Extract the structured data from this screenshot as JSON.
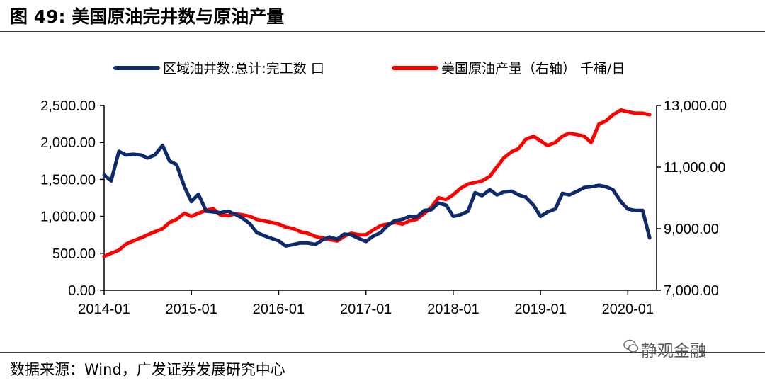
{
  "figure": {
    "title": "图 49:  美国原油完井数与原油产量",
    "source": "数据来源：Wind，广发证券发展研究中心",
    "watermark": "静观金融"
  },
  "colors": {
    "series1": "#0d2a6b",
    "series2": "#ff0000",
    "axis": "#000000",
    "rule": "#3a3a3a"
  },
  "chart_data": {
    "type": "line",
    "title": "",
    "grid": false,
    "legend_position": "top",
    "x_ticks": [
      "2014-01",
      "2015-01",
      "2016-01",
      "2017-01",
      "2018-01",
      "2019-01",
      "2020-01"
    ],
    "y_left": {
      "range": [
        0,
        2500
      ],
      "ticks": [
        "2,500.00",
        "2,000.00",
        "1,500.00",
        "1,000.00",
        "500.00",
        "0.00"
      ],
      "tick_values": [
        2500,
        2000,
        1500,
        1000,
        500,
        0
      ]
    },
    "y_right": {
      "range": [
        7000,
        13000
      ],
      "ticks": [
        "13,000.00",
        "11,000.00",
        "9,000.00",
        "7,000.00"
      ],
      "tick_values": [
        13000,
        11000,
        9000,
        7000
      ]
    },
    "series": [
      {
        "name": "区域油井数:总计:完工数 口",
        "axis": "left",
        "color": "#0d2a6b",
        "x": [
          2014.0,
          2014.08,
          2014.17,
          2014.25,
          2014.33,
          2014.42,
          2014.5,
          2014.58,
          2014.67,
          2014.75,
          2014.83,
          2014.92,
          2015.0,
          2015.08,
          2015.17,
          2015.25,
          2015.33,
          2015.42,
          2015.5,
          2015.58,
          2015.67,
          2015.75,
          2015.83,
          2015.92,
          2016.0,
          2016.08,
          2016.17,
          2016.25,
          2016.33,
          2016.42,
          2016.5,
          2016.58,
          2016.67,
          2016.75,
          2016.83,
          2016.92,
          2017.0,
          2017.08,
          2017.17,
          2017.25,
          2017.33,
          2017.42,
          2017.5,
          2017.58,
          2017.67,
          2017.75,
          2017.83,
          2017.92,
          2018.0,
          2018.08,
          2018.17,
          2018.25,
          2018.33,
          2018.42,
          2018.5,
          2018.58,
          2018.67,
          2018.75,
          2018.83,
          2018.92,
          2019.0,
          2019.08,
          2019.17,
          2019.25,
          2019.33,
          2019.42,
          2019.5,
          2019.58,
          2019.67,
          2019.75,
          2019.83,
          2019.92,
          2020.0,
          2020.08,
          2020.17,
          2020.25
        ],
        "values": [
          1560,
          1480,
          1880,
          1830,
          1840,
          1830,
          1790,
          1830,
          1960,
          1750,
          1700,
          1400,
          1200,
          1300,
          1070,
          1060,
          1050,
          1070,
          1030,
          980,
          900,
          780,
          740,
          700,
          670,
          600,
          620,
          640,
          640,
          620,
          680,
          720,
          690,
          760,
          750,
          700,
          660,
          730,
          780,
          880,
          940,
          960,
          1000,
          990,
          1080,
          1090,
          1180,
          1150,
          1000,
          1020,
          1070,
          1320,
          1280,
          1360,
          1290,
          1330,
          1340,
          1290,
          1260,
          1150,
          1000,
          1060,
          1100,
          1310,
          1290,
          1340,
          1390,
          1400,
          1420,
          1400,
          1360,
          1200,
          1100,
          1080,
          1080,
          710
        ]
      },
      {
        "name": "美国原油产量（右轴） 千桶/日",
        "axis": "right",
        "color": "#ff0000",
        "x": [
          2014.0,
          2014.08,
          2014.17,
          2014.25,
          2014.33,
          2014.42,
          2014.5,
          2014.58,
          2014.67,
          2014.75,
          2014.83,
          2014.92,
          2015.0,
          2015.08,
          2015.17,
          2015.25,
          2015.33,
          2015.42,
          2015.5,
          2015.58,
          2015.67,
          2015.75,
          2015.83,
          2015.92,
          2016.0,
          2016.08,
          2016.17,
          2016.25,
          2016.33,
          2016.42,
          2016.5,
          2016.58,
          2016.67,
          2016.75,
          2016.83,
          2016.92,
          2017.0,
          2017.08,
          2017.17,
          2017.25,
          2017.33,
          2017.42,
          2017.5,
          2017.58,
          2017.67,
          2017.75,
          2017.83,
          2017.92,
          2018.0,
          2018.08,
          2018.17,
          2018.25,
          2018.33,
          2018.42,
          2018.5,
          2018.58,
          2018.67,
          2018.75,
          2018.83,
          2018.92,
          2019.0,
          2019.08,
          2019.17,
          2019.25,
          2019.33,
          2019.42,
          2019.5,
          2019.58,
          2019.67,
          2019.75,
          2019.83,
          2019.92,
          2020.0,
          2020.08,
          2020.17,
          2020.25
        ],
        "values": [
          8100,
          8200,
          8300,
          8500,
          8600,
          8700,
          8800,
          8900,
          9000,
          9200,
          9300,
          9500,
          9400,
          9500,
          9600,
          9650,
          9450,
          9420,
          9480,
          9450,
          9400,
          9300,
          9250,
          9200,
          9150,
          9050,
          9000,
          8900,
          8850,
          8750,
          8700,
          8650,
          8600,
          8750,
          8850,
          8800,
          8800,
          8950,
          9100,
          9150,
          9200,
          9150,
          9250,
          9300,
          9500,
          9700,
          10000,
          9950,
          10100,
          10300,
          10450,
          10500,
          10550,
          10700,
          11000,
          11300,
          11500,
          11600,
          11900,
          12000,
          11850,
          11700,
          11800,
          12000,
          12100,
          12050,
          12000,
          11800,
          12400,
          12500,
          12700,
          12850,
          12800,
          12750,
          12750,
          12700
        ]
      }
    ]
  }
}
